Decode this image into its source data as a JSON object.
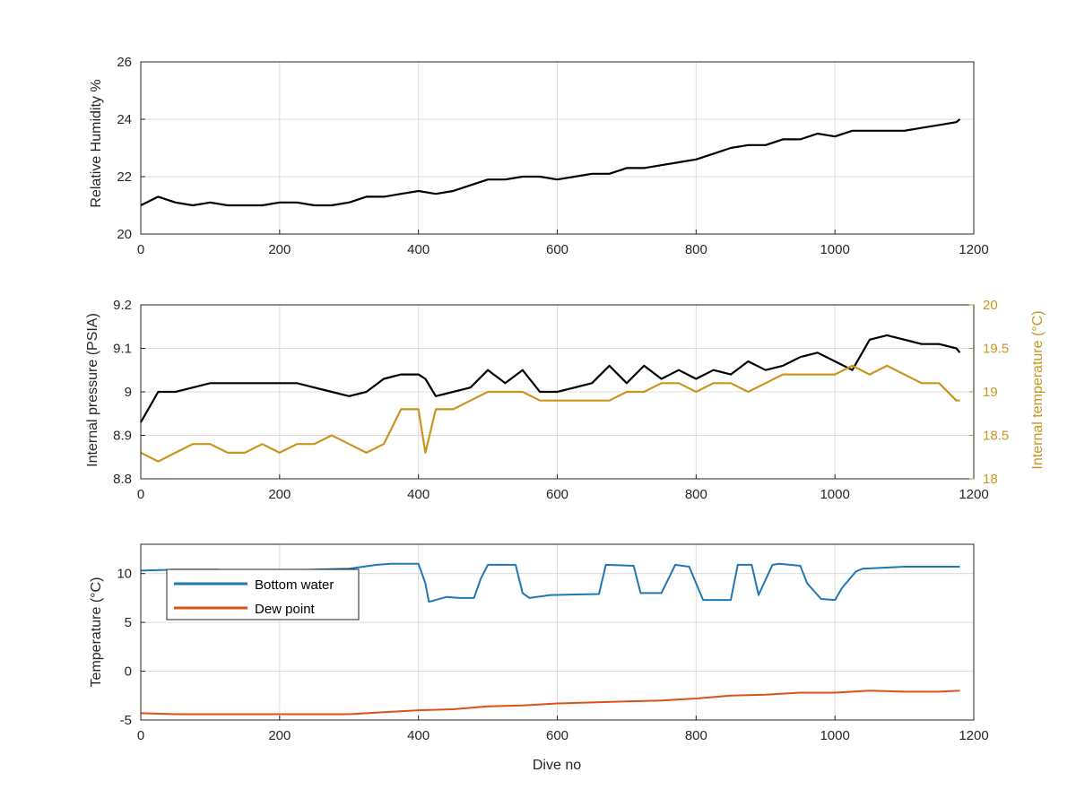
{
  "chart_data": [
    {
      "type": "line",
      "xlabel": "",
      "ylabel": "Relative Humidity %",
      "xlim": [
        0,
        1200
      ],
      "ylim": [
        20,
        26
      ],
      "xticks": [
        "0",
        "200",
        "400",
        "600",
        "800",
        "1000",
        "1200"
      ],
      "yticks": [
        "20",
        "22",
        "24",
        "26"
      ],
      "grid": true,
      "colors": {
        "series": "#000000"
      },
      "series": [
        {
          "name": "",
          "x": [
            0,
            25,
            50,
            75,
            100,
            125,
            150,
            175,
            200,
            225,
            250,
            275,
            300,
            325,
            350,
            375,
            400,
            425,
            450,
            475,
            500,
            525,
            550,
            575,
            600,
            625,
            650,
            675,
            700,
            725,
            750,
            775,
            800,
            825,
            850,
            875,
            900,
            925,
            950,
            975,
            1000,
            1025,
            1050,
            1075,
            1100,
            1125,
            1150,
            1175,
            1180
          ],
          "y": [
            21.0,
            21.3,
            21.1,
            21.0,
            21.1,
            21.0,
            21.0,
            21.0,
            21.1,
            21.1,
            21.0,
            21.0,
            21.1,
            21.3,
            21.3,
            21.4,
            21.5,
            21.4,
            21.5,
            21.7,
            21.9,
            21.9,
            22.0,
            22.0,
            21.9,
            22.0,
            22.1,
            22.1,
            22.3,
            22.3,
            22.4,
            22.5,
            22.6,
            22.8,
            23.0,
            23.1,
            23.1,
            23.3,
            23.3,
            23.5,
            23.4,
            23.6,
            23.6,
            23.6,
            23.6,
            23.7,
            23.8,
            23.9,
            24.0
          ]
        }
      ]
    },
    {
      "type": "line",
      "xlabel": "",
      "ylabel": "Internal pressure (PSIA)",
      "ylabel_right": "Internal temperature (°C)",
      "xlim": [
        0,
        1200
      ],
      "ylim": [
        8.8,
        9.2
      ],
      "ylim_right": [
        18,
        20
      ],
      "xticks": [
        "0",
        "200",
        "400",
        "600",
        "800",
        "1000",
        "1200"
      ],
      "yticks": [
        "8.8",
        "8.9",
        "9",
        "9.1",
        "9.2"
      ],
      "yticks_right": [
        "18",
        "18.5",
        "19",
        "19.5",
        "20"
      ],
      "grid": true,
      "colors": {
        "pressure": "#000000",
        "temperature": "#C8961E"
      },
      "series": [
        {
          "name": "",
          "axis": "left",
          "x": [
            0,
            25,
            50,
            75,
            100,
            125,
            150,
            175,
            200,
            225,
            250,
            275,
            300,
            325,
            350,
            375,
            400,
            410,
            425,
            450,
            475,
            500,
            525,
            550,
            575,
            600,
            625,
            650,
            675,
            700,
            725,
            750,
            775,
            800,
            825,
            850,
            875,
            900,
            925,
            950,
            975,
            1000,
            1025,
            1050,
            1075,
            1100,
            1125,
            1150,
            1175,
            1180
          ],
          "y": [
            8.93,
            9.0,
            9.0,
            9.01,
            9.02,
            9.02,
            9.02,
            9.02,
            9.02,
            9.02,
            9.01,
            9.0,
            8.99,
            9.0,
            9.03,
            9.04,
            9.04,
            9.03,
            8.99,
            9.0,
            9.01,
            9.05,
            9.02,
            9.05,
            9.0,
            9.0,
            9.01,
            9.02,
            9.06,
            9.02,
            9.06,
            9.03,
            9.05,
            9.03,
            9.05,
            9.04,
            9.07,
            9.05,
            9.06,
            9.08,
            9.09,
            9.07,
            9.05,
            9.12,
            9.13,
            9.12,
            9.11,
            9.11,
            9.1,
            9.09
          ]
        },
        {
          "name": "",
          "axis": "right",
          "x": [
            0,
            25,
            50,
            75,
            100,
            125,
            150,
            175,
            200,
            225,
            250,
            275,
            300,
            325,
            350,
            375,
            400,
            410,
            425,
            450,
            475,
            500,
            525,
            550,
            575,
            600,
            625,
            650,
            675,
            700,
            725,
            750,
            775,
            800,
            825,
            850,
            875,
            900,
            925,
            950,
            975,
            1000,
            1025,
            1050,
            1075,
            1100,
            1125,
            1150,
            1175,
            1180
          ],
          "y": [
            18.3,
            18.2,
            18.3,
            18.4,
            18.4,
            18.3,
            18.3,
            18.4,
            18.3,
            18.4,
            18.4,
            18.5,
            18.4,
            18.3,
            18.4,
            18.8,
            18.8,
            18.3,
            18.8,
            18.8,
            18.9,
            19.0,
            19.0,
            19.0,
            18.9,
            18.9,
            18.9,
            18.9,
            18.9,
            19.0,
            19.0,
            19.1,
            19.1,
            19.0,
            19.1,
            19.1,
            19.0,
            19.1,
            19.2,
            19.2,
            19.2,
            19.2,
            19.3,
            19.2,
            19.3,
            19.2,
            19.1,
            19.1,
            18.9,
            18.9
          ]
        }
      ]
    },
    {
      "type": "line",
      "xlabel": "Dive no",
      "ylabel": "Temperature (°C)",
      "xlim": [
        0,
        1200
      ],
      "ylim": [
        -5,
        13
      ],
      "xticks": [
        "0",
        "200",
        "400",
        "600",
        "800",
        "1000",
        "1200"
      ],
      "yticks": [
        "-5",
        "0",
        "5",
        "10"
      ],
      "grid": true,
      "legend": "top-left",
      "colors": {
        "bottom_water": "#1F77B4",
        "dew_point": "#D95319"
      },
      "series": [
        {
          "name": "Bottom water",
          "x": [
            0,
            50,
            110,
            150,
            200,
            250,
            300,
            340,
            360,
            400,
            410,
            415,
            420,
            440,
            460,
            480,
            490,
            500,
            540,
            550,
            560,
            590,
            660,
            670,
            710,
            720,
            750,
            770,
            790,
            810,
            850,
            860,
            880,
            890,
            910,
            920,
            950,
            960,
            980,
            1000,
            1010,
            1030,
            1040,
            1100,
            1150,
            1180
          ],
          "y": [
            10.3,
            10.4,
            10.4,
            10.2,
            10.3,
            10.4,
            10.5,
            10.9,
            11.0,
            11.0,
            9.0,
            7.1,
            7.2,
            7.6,
            7.5,
            7.5,
            9.5,
            10.9,
            10.9,
            8.0,
            7.5,
            7.8,
            7.9,
            10.9,
            10.8,
            8.0,
            8.0,
            10.9,
            10.7,
            7.3,
            7.3,
            10.9,
            10.9,
            7.8,
            10.9,
            11.0,
            10.8,
            9.0,
            7.4,
            7.3,
            8.5,
            10.2,
            10.5,
            10.7,
            10.7,
            10.7
          ]
        },
        {
          "name": "Dew point",
          "x": [
            0,
            50,
            100,
            150,
            200,
            250,
            300,
            350,
            400,
            450,
            500,
            550,
            600,
            650,
            700,
            750,
            800,
            850,
            900,
            950,
            1000,
            1050,
            1100,
            1150,
            1180
          ],
          "y": [
            -4.3,
            -4.4,
            -4.4,
            -4.4,
            -4.4,
            -4.4,
            -4.4,
            -4.2,
            -4.0,
            -3.9,
            -3.6,
            -3.5,
            -3.3,
            -3.2,
            -3.1,
            -3.0,
            -2.8,
            -2.5,
            -2.4,
            -2.2,
            -2.2,
            -2.0,
            -2.1,
            -2.1,
            -2.0
          ]
        }
      ]
    }
  ]
}
